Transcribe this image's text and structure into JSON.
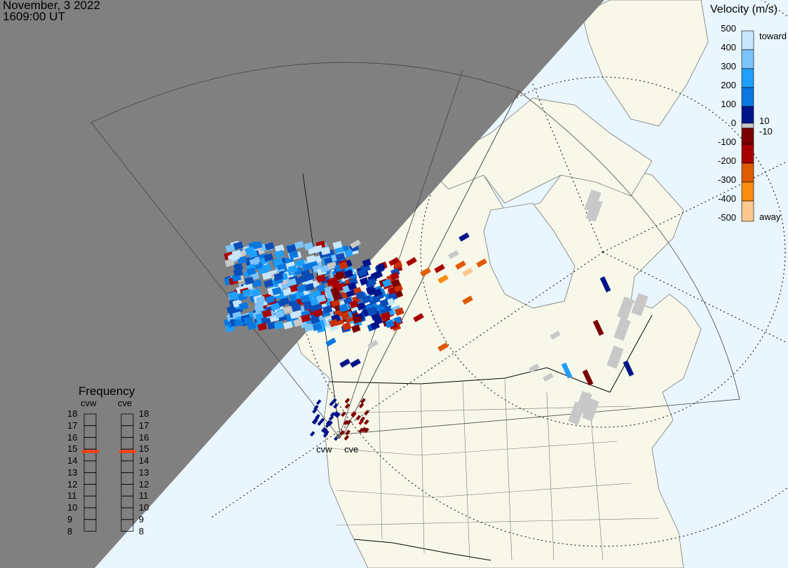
{
  "header": {
    "date": "November, 3 2022",
    "time": "1609:00 UT"
  },
  "velocity_scale": {
    "title": "Velocity (m/s)",
    "ticks": [
      "500",
      "400",
      "300",
      "200",
      "100",
      "0",
      "-100",
      "-200",
      "-300",
      "-400",
      "-500"
    ],
    "toward_label": "toward",
    "away_label": "away",
    "ground_scatter_upper": "10",
    "ground_scatter_lower": "-10",
    "colors": [
      "#c8e6fc",
      "#7cc4fc",
      "#1ea0fa",
      "#0a78e0",
      "#0a4cb8",
      "#00148a",
      "#c8c8c8",
      "#7a0000",
      "#a80000",
      "#c83000",
      "#e05a00",
      "#fa8c10",
      "#fcc890"
    ]
  },
  "frequency_panel": {
    "title": "Frequency",
    "radars": [
      {
        "name": "cvw",
        "frequency_mhz": 14.8
      },
      {
        "name": "cve",
        "frequency_mhz": 14.8
      }
    ],
    "ticks": [
      "18",
      "17",
      "16",
      "15",
      "14",
      "13",
      "12",
      "11",
      "10",
      "9",
      "8"
    ],
    "marker_color": "#ff3c00"
  },
  "map": {
    "radar_sites": [
      "cvw",
      "cve"
    ],
    "night_color": "#808080",
    "land_color": "#f8f8ea",
    "ocean_color": "#eaf6fe",
    "ground_scatter_color": "#c8c8c8"
  }
}
